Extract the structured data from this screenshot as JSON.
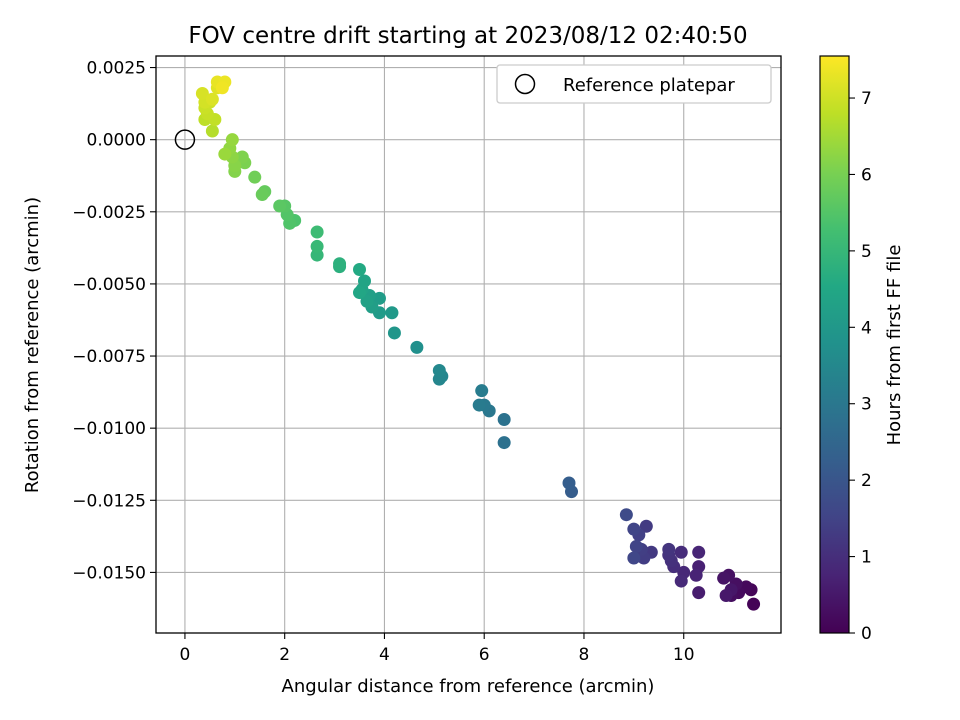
{
  "chart_data": {
    "type": "scatter",
    "title": "FOV centre drift starting at 2023/08/12 02:40:50",
    "xlabel": "Angular distance from reference (arcmin)",
    "ylabel": "Rotation from reference (arcmin)",
    "xlim": [
      -0.58,
      11.95
    ],
    "ylim": [
      -0.0171,
      0.0029
    ],
    "x_ticks": [
      0,
      2,
      4,
      6,
      8,
      10
    ],
    "x_tick_labels": [
      "0",
      "2",
      "4",
      "6",
      "8",
      "10"
    ],
    "y_ticks": [
      0.0025,
      0.0,
      -0.0025,
      -0.005,
      -0.0075,
      -0.01,
      -0.0125,
      -0.015
    ],
    "y_tick_labels": [
      "0.0025",
      "0.0000",
      "−0.0025",
      "−0.0050",
      "−0.0075",
      "−0.0100",
      "−0.0125",
      "−0.0150"
    ],
    "grid": true,
    "legend": {
      "position": "top-right",
      "entries": [
        "Reference platepar"
      ]
    },
    "reference_point": {
      "x": 0,
      "y": 0
    },
    "colorbar": {
      "label": "Hours from first FF file",
      "colormap": "viridis",
      "range": [
        0,
        7.55
      ],
      "ticks": [
        0,
        1,
        2,
        3,
        4,
        5,
        6,
        7
      ],
      "tick_labels": [
        "0",
        "1",
        "2",
        "3",
        "4",
        "5",
        "6",
        "7"
      ]
    },
    "points": [
      [
        11.4,
        -0.0161,
        0.05
      ],
      [
        11.35,
        -0.0156,
        0.1
      ],
      [
        11.25,
        -0.0155,
        0.15
      ],
      [
        11.1,
        -0.0157,
        0.2
      ],
      [
        10.95,
        -0.0158,
        0.25
      ],
      [
        11.05,
        -0.0154,
        0.3
      ],
      [
        10.9,
        -0.0151,
        0.35
      ],
      [
        10.8,
        -0.0152,
        0.4
      ],
      [
        10.95,
        -0.0156,
        0.45
      ],
      [
        10.85,
        -0.0158,
        0.5
      ],
      [
        10.3,
        -0.0157,
        0.6
      ],
      [
        10.3,
        -0.0148,
        0.7
      ],
      [
        10.25,
        -0.0151,
        0.75
      ],
      [
        10.3,
        -0.0143,
        0.8
      ],
      [
        10.0,
        -0.015,
        0.85
      ],
      [
        9.95,
        -0.0153,
        0.9
      ],
      [
        9.95,
        -0.0143,
        0.95
      ],
      [
        9.8,
        -0.0148,
        1.0
      ],
      [
        9.75,
        -0.0146,
        1.05
      ],
      [
        9.7,
        -0.0144,
        1.1
      ],
      [
        9.7,
        -0.0142,
        1.15
      ],
      [
        9.35,
        -0.0143,
        1.25
      ],
      [
        9.25,
        -0.0134,
        1.3
      ],
      [
        9.2,
        -0.0145,
        1.35
      ],
      [
        9.15,
        -0.0142,
        1.4
      ],
      [
        9.1,
        -0.0137,
        1.45
      ],
      [
        9.05,
        -0.0141,
        1.5
      ],
      [
        9.0,
        -0.0135,
        1.55
      ],
      [
        9.0,
        -0.0145,
        1.6
      ],
      [
        8.85,
        -0.013,
        1.7
      ],
      [
        7.75,
        -0.0122,
        2.2
      ],
      [
        7.7,
        -0.0119,
        2.25
      ],
      [
        6.4,
        -0.0105,
        2.8
      ],
      [
        6.4,
        -0.0097,
        2.85
      ],
      [
        6.1,
        -0.0094,
        3.0
      ],
      [
        6.0,
        -0.0092,
        3.05
      ],
      [
        5.9,
        -0.0092,
        3.1
      ],
      [
        5.95,
        -0.0087,
        3.15
      ],
      [
        5.15,
        -0.0082,
        3.4
      ],
      [
        5.1,
        -0.0083,
        3.45
      ],
      [
        5.1,
        -0.008,
        3.5
      ],
      [
        4.65,
        -0.0072,
        3.75
      ],
      [
        4.2,
        -0.0067,
        3.95
      ],
      [
        4.15,
        -0.006,
        4.05
      ],
      [
        3.9,
        -0.006,
        4.1
      ],
      [
        3.9,
        -0.0055,
        4.15
      ],
      [
        3.75,
        -0.0058,
        4.2
      ],
      [
        3.7,
        -0.0054,
        4.25
      ],
      [
        3.65,
        -0.0056,
        4.3
      ],
      [
        3.55,
        -0.0052,
        4.35
      ],
      [
        3.6,
        -0.0049,
        4.4
      ],
      [
        3.5,
        -0.0053,
        4.45
      ],
      [
        3.5,
        -0.0045,
        4.55
      ],
      [
        3.1,
        -0.0044,
        4.75
      ],
      [
        3.1,
        -0.0043,
        4.8
      ],
      [
        2.65,
        -0.004,
        5.0
      ],
      [
        2.65,
        -0.0037,
        5.05
      ],
      [
        2.65,
        -0.0032,
        5.15
      ],
      [
        2.2,
        -0.0028,
        5.4
      ],
      [
        2.1,
        -0.0029,
        5.45
      ],
      [
        2.05,
        -0.0026,
        5.5
      ],
      [
        2.0,
        -0.0023,
        5.55
      ],
      [
        1.9,
        -0.0023,
        5.6
      ],
      [
        1.6,
        -0.0018,
        5.75
      ],
      [
        1.55,
        -0.0019,
        5.8
      ],
      [
        1.4,
        -0.0013,
        5.9
      ],
      [
        1.2,
        -0.0008,
        6.05
      ],
      [
        1.15,
        -0.0006,
        6.1
      ],
      [
        1.0,
        -0.0011,
        6.15
      ],
      [
        1.0,
        -0.0009,
        6.2
      ],
      [
        0.95,
        -0.0006,
        6.25
      ],
      [
        0.9,
        -0.0003,
        6.3
      ],
      [
        0.95,
        0.0,
        6.35
      ],
      [
        0.8,
        -0.0005,
        6.4
      ],
      [
        0.55,
        0.0003,
        6.7
      ],
      [
        0.4,
        0.0007,
        6.8
      ],
      [
        0.6,
        0.0007,
        6.85
      ],
      [
        0.45,
        0.0009,
        6.9
      ],
      [
        0.4,
        0.0011,
        6.95
      ],
      [
        0.5,
        0.0013,
        7.0
      ],
      [
        0.4,
        0.0013,
        7.05
      ],
      [
        0.35,
        0.0016,
        7.1
      ],
      [
        0.55,
        0.0014,
        7.15
      ],
      [
        0.65,
        0.0018,
        7.2
      ],
      [
        0.75,
        0.0019,
        7.25
      ],
      [
        0.65,
        0.002,
        7.3
      ],
      [
        0.8,
        0.002,
        7.35
      ],
      [
        0.75,
        0.0018,
        7.4
      ]
    ]
  }
}
